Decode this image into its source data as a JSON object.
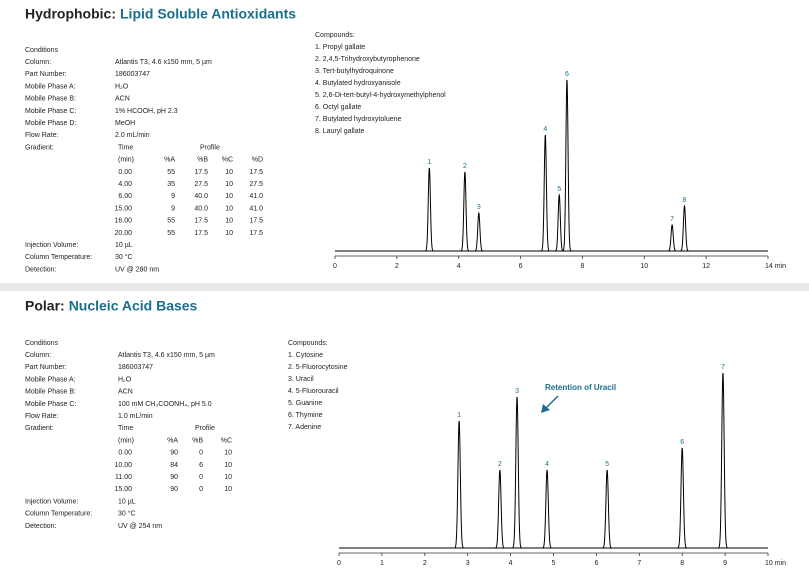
{
  "sections": [
    {
      "title_prefix": "Hydrophobic:",
      "title": "Lipid Soluble Antioxidants",
      "conditions": [
        [
          "Conditions",
          ""
        ],
        [
          "Column:",
          "Atlantis T3, 4.6 x150 mm, 5 µm"
        ],
        [
          "Part Number:",
          "186003747"
        ],
        [
          "Mobile Phase A:",
          "H₂O"
        ],
        [
          "Mobile Phase B:",
          "ACN"
        ],
        [
          "Mobile Phase C:",
          "1% HCOOH, pH 2.3"
        ],
        [
          "Mobile Phase D:",
          "MeOH"
        ],
        [
          "Flow Rate:",
          "2.0 mL/min"
        ]
      ],
      "gradient_label": "Gradient:",
      "gradient_time": "Time",
      "gradient_profile": "Profile",
      "gradient_header": [
        "(min)",
        "%A",
        "%B",
        "%C",
        "%D"
      ],
      "gradient_rows": [
        [
          "0.00",
          "55",
          "17.5",
          "10",
          "17.5"
        ],
        [
          "4.00",
          "35",
          "27.5",
          "10",
          "27.5"
        ],
        [
          "6.00",
          "9",
          "40.0",
          "10",
          "41.0"
        ],
        [
          "15.00",
          "9",
          "40.0",
          "10",
          "41.0"
        ],
        [
          "16.00",
          "55",
          "17.5",
          "10",
          "17.5"
        ],
        [
          "20.00",
          "55",
          "17.5",
          "10",
          "17.5"
        ]
      ],
      "footer": [
        [
          "Injection Volume:",
          "10 µL"
        ],
        [
          "Column Temperature:",
          "30 °C"
        ],
        [
          "Detection:",
          "UV @ 280 nm"
        ]
      ],
      "compounds_title": "Compounds:",
      "compounds": [
        "1. Propyl gallate",
        "2. 2,4,5-Trihydroxybutyrophenone",
        "3. Tert-butylhydroquinone",
        "4. Butylated hydroxyanisole",
        "5. 2,6-Di-tert-butyl-4-hydroxymethylphenol",
        "6. Octyl gallate",
        "7. Butylated hydroxytoluene",
        "8. Lauryl gallate"
      ]
    },
    {
      "title_prefix": "Polar:",
      "title": "Nucleic Acid Bases",
      "conditions": [
        [
          "Conditions",
          ""
        ],
        [
          "Column:",
          "Atlantis T3, 4.6 x150 mm, 5 µm"
        ],
        [
          "Part Number:",
          "186003747"
        ],
        [
          "Mobile Phase A:",
          "H₂O"
        ],
        [
          "Mobile Phase B:",
          "ACN"
        ],
        [
          "Mobile Phase C:",
          "100 mM CH₃COONH₄, pH 5.0"
        ],
        [
          "Flow Rate:",
          "1.0 mL/min"
        ]
      ],
      "gradient_label": "Gradient:",
      "gradient_time": "Time",
      "gradient_profile": "Profile",
      "gradient_header": [
        "(min)",
        "%A",
        "%B",
        "%C"
      ],
      "gradient_rows": [
        [
          "0.00",
          "90",
          "0",
          "10"
        ],
        [
          "10.00",
          "84",
          "6",
          "10"
        ],
        [
          "11.00",
          "90",
          "0",
          "10"
        ],
        [
          "15.00",
          "90",
          "0",
          "10"
        ]
      ],
      "footer": [
        [
          "Injection Volume:",
          "10 µL"
        ],
        [
          "Column Temperature:",
          "30 °C"
        ],
        [
          "Detection:",
          "UV @ 254 nm"
        ]
      ],
      "compounds_title": "Compounds:",
      "compounds": [
        "1. Cytosine",
        "2. 5-Fluorocytosine",
        "3. Uracil",
        "4. 5-Fluorouracil",
        "5. Guanine",
        "6. Thymine",
        "7. Adenine"
      ]
    }
  ],
  "chart_data": [
    {
      "type": "chromatogram",
      "color": "#000000",
      "x": [
        3.05,
        4.2,
        4.65,
        6.8,
        7.25,
        7.5,
        10.9,
        11.3
      ],
      "values": [
        83,
        79,
        38,
        116,
        56,
        171,
        26,
        45
      ],
      "peak_labels": [
        "1",
        "2",
        "3",
        "4",
        "5",
        "6",
        "7",
        "8"
      ],
      "xlim": [
        0,
        14
      ],
      "ylim": [
        0,
        180
      ],
      "xticks": [
        0,
        2,
        4,
        6,
        8,
        10,
        12,
        {
          "value": 14,
          "label": "14 min"
        }
      ]
    },
    {
      "type": "chromatogram",
      "color": "#000000",
      "x": [
        2.8,
        3.75,
        4.15,
        4.85,
        6.25,
        8.0,
        8.95
      ],
      "values": [
        127,
        78,
        151,
        78,
        78,
        100,
        175
      ],
      "peak_labels": [
        "1",
        "2",
        "3",
        "4",
        "5",
        "6",
        "7"
      ],
      "xlim": [
        0,
        10
      ],
      "ylim": [
        0,
        180
      ],
      "xticks": [
        0,
        1,
        2,
        3,
        4,
        5,
        6,
        7,
        8,
        9,
        {
          "value": 10,
          "label": "10 min"
        }
      ],
      "annotation": "Retention of Uracil"
    }
  ]
}
